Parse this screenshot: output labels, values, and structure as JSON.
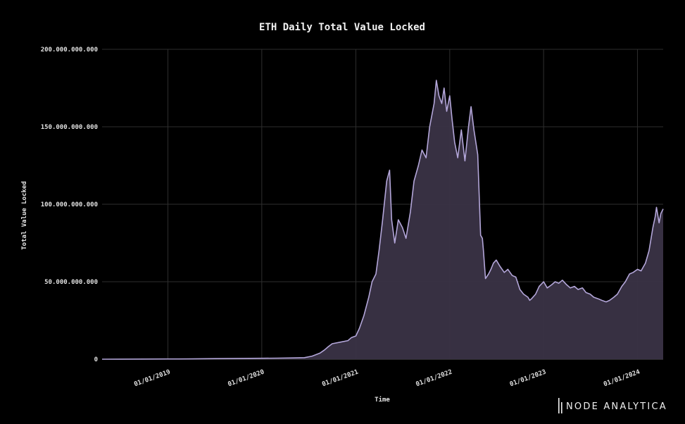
{
  "chart_data": {
    "type": "area",
    "title": "ETH Daily Total Value Locked",
    "xlabel": "Time",
    "ylabel": "Total Value Locked",
    "x_ticks": [
      "01/01/2019",
      "01/01/2020",
      "01/01/2021",
      "01/01/2022",
      "01/01/2023",
      "01/01/2024"
    ],
    "y_ticks": [
      "0",
      "50.000.000.000",
      "100.000.000.000",
      "150.000.000.000",
      "200.000.000.000"
    ],
    "xlim": [
      "2018-04-20",
      "2024-04-10"
    ],
    "ylim": [
      0,
      200000000000
    ],
    "grid": true,
    "line_color": "#b3a6d9",
    "fill_color": "#3a3346",
    "series": [
      {
        "x": [
          "2018-04-20",
          "2018-07-01",
          "2018-10-01",
          "2019-01-01",
          "2019-04-01",
          "2019-07-01",
          "2019-10-01",
          "2020-01-01",
          "2020-03-01",
          "2020-05-01",
          "2020-06-15",
          "2020-07-15",
          "2020-08-15",
          "2020-09-01",
          "2020-09-15",
          "2020-10-01",
          "2020-11-01",
          "2020-12-01",
          "2020-12-15",
          "2021-01-01",
          "2021-01-15",
          "2021-02-01",
          "2021-02-20",
          "2021-03-05",
          "2021-03-20",
          "2021-04-01",
          "2021-04-15",
          "2021-05-01",
          "2021-05-12",
          "2021-05-20",
          "2021-06-01",
          "2021-06-15",
          "2021-07-01",
          "2021-07-15",
          "2021-08-01",
          "2021-08-15",
          "2021-09-01",
          "2021-09-15",
          "2021-10-01",
          "2021-10-15",
          "2021-11-01",
          "2021-11-10",
          "2021-11-20",
          "2021-12-01",
          "2021-12-10",
          "2021-12-20",
          "2022-01-01",
          "2022-01-10",
          "2022-01-20",
          "2022-02-01",
          "2022-02-15",
          "2022-03-01",
          "2022-03-15",
          "2022-03-25",
          "2022-04-05",
          "2022-04-20",
          "2022-05-01",
          "2022-05-08",
          "2022-05-12",
          "2022-05-20",
          "2022-06-01",
          "2022-06-10",
          "2022-06-15",
          "2022-06-20",
          "2022-07-01",
          "2022-07-15",
          "2022-08-01",
          "2022-08-15",
          "2022-09-01",
          "2022-09-15",
          "2022-10-01",
          "2022-10-15",
          "2022-11-01",
          "2022-11-08",
          "2022-11-15",
          "2022-12-01",
          "2022-12-15",
          "2023-01-01",
          "2023-01-15",
          "2023-02-01",
          "2023-02-15",
          "2023-03-01",
          "2023-03-15",
          "2023-04-01",
          "2023-04-15",
          "2023-05-01",
          "2023-05-15",
          "2023-06-01",
          "2023-06-15",
          "2023-07-01",
          "2023-07-15",
          "2023-08-01",
          "2023-08-15",
          "2023-09-01",
          "2023-09-15",
          "2023-10-01",
          "2023-10-15",
          "2023-11-01",
          "2023-11-15",
          "2023-12-01",
          "2023-12-15",
          "2024-01-01",
          "2024-01-15",
          "2024-02-01",
          "2024-02-15",
          "2024-03-01",
          "2024-03-10",
          "2024-03-15",
          "2024-03-25",
          "2024-04-01",
          "2024-04-10"
        ],
        "values": [
          0,
          50000000,
          100000000,
          150000000,
          200000000,
          350000000,
          500000000,
          600000000,
          700000000,
          800000000,
          1000000000,
          2000000000,
          4000000000,
          6000000000,
          8000000000,
          10000000000,
          11000000000,
          12000000000,
          14000000000,
          15000000000,
          20000000000,
          28000000000,
          40000000000,
          50000000000,
          55000000000,
          70000000000,
          90000000000,
          115000000000,
          122000000000,
          90000000000,
          75000000000,
          90000000000,
          85000000000,
          78000000000,
          95000000000,
          115000000000,
          125000000000,
          135000000000,
          130000000000,
          150000000000,
          165000000000,
          180000000000,
          170000000000,
          165000000000,
          175000000000,
          160000000000,
          170000000000,
          155000000000,
          140000000000,
          130000000000,
          148000000000,
          128000000000,
          150000000000,
          163000000000,
          148000000000,
          132000000000,
          80000000000,
          78000000000,
          70000000000,
          52000000000,
          55000000000,
          58000000000,
          60000000000,
          62000000000,
          64000000000,
          60000000000,
          56000000000,
          58000000000,
          54000000000,
          53000000000,
          45000000000,
          42000000000,
          40000000000,
          38000000000,
          39000000000,
          42000000000,
          47000000000,
          50000000000,
          46000000000,
          48000000000,
          50000000000,
          49000000000,
          51000000000,
          48000000000,
          46000000000,
          47000000000,
          45000000000,
          46000000000,
          43000000000,
          42000000000,
          40000000000,
          39000000000,
          38000000000,
          37000000000,
          38000000000,
          40000000000,
          42000000000,
          47000000000,
          50000000000,
          55000000000,
          56000000000,
          58000000000,
          57000000000,
          62000000000,
          70000000000,
          85000000000,
          92000000000,
          98000000000,
          88000000000,
          94000000000,
          97000000000
        ]
      }
    ]
  },
  "branding": {
    "logo_text": "NODE ANALYTICA"
  }
}
